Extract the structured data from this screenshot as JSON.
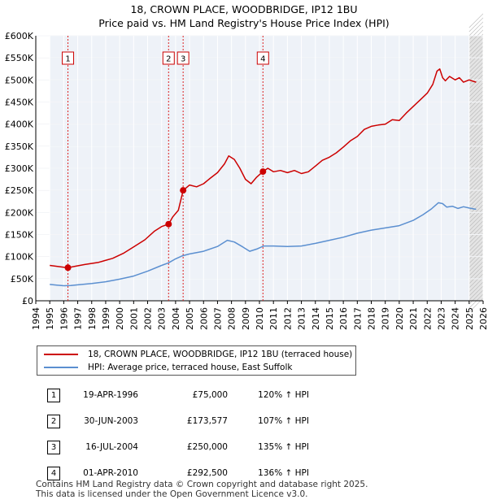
{
  "chart_data": {
    "type": "line",
    "title": "18, CROWN PLACE, WOODBRIDGE, IP12 1BU",
    "subtitle": "Price paid vs. HM Land Registry's House Price Index (HPI)",
    "xlim": [
      1994,
      2026
    ],
    "ylim": [
      0,
      600000
    ],
    "x_ticks": [
      "1994",
      "1995",
      "1996",
      "1997",
      "1998",
      "1999",
      "2000",
      "2001",
      "2002",
      "2003",
      "2004",
      "2005",
      "2006",
      "2007",
      "2008",
      "2009",
      "2010",
      "2011",
      "2012",
      "2013",
      "2014",
      "2015",
      "2016",
      "2017",
      "2018",
      "2019",
      "2020",
      "2021",
      "2022",
      "2023",
      "2024",
      "2025",
      "2026"
    ],
    "y_ticks": [
      {
        "value": 0,
        "label": "£0"
      },
      {
        "value": 50000,
        "label": "£50K"
      },
      {
        "value": 100000,
        "label": "£100K"
      },
      {
        "value": 150000,
        "label": "£150K"
      },
      {
        "value": 200000,
        "label": "£200K"
      },
      {
        "value": 250000,
        "label": "£250K"
      },
      {
        "value": 300000,
        "label": "£300K"
      },
      {
        "value": 350000,
        "label": "£350K"
      },
      {
        "value": 400000,
        "label": "£400K"
      },
      {
        "value": 450000,
        "label": "£450K"
      },
      {
        "value": 500000,
        "label": "£500K"
      },
      {
        "value": 550000,
        "label": "£550K"
      },
      {
        "value": 600000,
        "label": "£600K"
      }
    ],
    "grid": true,
    "data_start": 1995,
    "forecast_start": 2025.0,
    "series": [
      {
        "name": "18, CROWN PLACE, WOODBRIDGE, IP12 1BU (terraced house)",
        "color": "#cc0000",
        "points": [
          [
            1995.0,
            80000
          ],
          [
            1995.5,
            78000
          ],
          [
            1996.0,
            76000
          ],
          [
            1996.3,
            75000
          ],
          [
            1996.8,
            78000
          ],
          [
            1997.5,
            82000
          ],
          [
            1998.5,
            87000
          ],
          [
            1999.5,
            96000
          ],
          [
            2000.3,
            108000
          ],
          [
            2001.0,
            122000
          ],
          [
            2001.8,
            138000
          ],
          [
            2002.5,
            158000
          ],
          [
            2003.0,
            168000
          ],
          [
            2003.5,
            173577
          ],
          [
            2003.8,
            190000
          ],
          [
            2004.2,
            205000
          ],
          [
            2004.54,
            250000
          ],
          [
            2005.0,
            262000
          ],
          [
            2005.5,
            258000
          ],
          [
            2006.0,
            265000
          ],
          [
            2006.5,
            278000
          ],
          [
            2007.0,
            290000
          ],
          [
            2007.5,
            310000
          ],
          [
            2007.8,
            328000
          ],
          [
            2008.2,
            320000
          ],
          [
            2008.6,
            300000
          ],
          [
            2009.0,
            275000
          ],
          [
            2009.4,
            265000
          ],
          [
            2009.8,
            280000
          ],
          [
            2010.25,
            292500
          ],
          [
            2010.6,
            300000
          ],
          [
            2011.0,
            292000
          ],
          [
            2011.5,
            295000
          ],
          [
            2012.0,
            290000
          ],
          [
            2012.5,
            295000
          ],
          [
            2013.0,
            288000
          ],
          [
            2013.5,
            292000
          ],
          [
            2014.0,
            305000
          ],
          [
            2014.5,
            318000
          ],
          [
            2015.0,
            325000
          ],
          [
            2015.5,
            335000
          ],
          [
            2016.0,
            348000
          ],
          [
            2016.5,
            362000
          ],
          [
            2017.0,
            372000
          ],
          [
            2017.5,
            388000
          ],
          [
            2018.0,
            395000
          ],
          [
            2018.5,
            398000
          ],
          [
            2019.0,
            400000
          ],
          [
            2019.5,
            410000
          ],
          [
            2020.0,
            408000
          ],
          [
            2020.5,
            425000
          ],
          [
            2021.0,
            440000
          ],
          [
            2021.5,
            455000
          ],
          [
            2022.0,
            470000
          ],
          [
            2022.4,
            490000
          ],
          [
            2022.7,
            520000
          ],
          [
            2022.9,
            525000
          ],
          [
            2023.1,
            505000
          ],
          [
            2023.3,
            498000
          ],
          [
            2023.6,
            508000
          ],
          [
            2024.0,
            500000
          ],
          [
            2024.3,
            505000
          ],
          [
            2024.6,
            495000
          ],
          [
            2025.0,
            500000
          ],
          [
            2025.5,
            495000
          ]
        ]
      },
      {
        "name": "HPI: Average price, terraced house, East Suffolk",
        "color": "#5b8fd0",
        "points": [
          [
            1995.0,
            37000
          ],
          [
            1995.5,
            35500
          ],
          [
            1996.0,
            34000
          ],
          [
            1996.5,
            34500
          ],
          [
            1997.0,
            36000
          ],
          [
            1998.0,
            39000
          ],
          [
            1999.0,
            43000
          ],
          [
            2000.0,
            49000
          ],
          [
            2001.0,
            56000
          ],
          [
            2002.0,
            67000
          ],
          [
            2003.0,
            80000
          ],
          [
            2003.5,
            86000
          ],
          [
            2004.0,
            95000
          ],
          [
            2004.5,
            102000
          ],
          [
            2005.0,
            106000
          ],
          [
            2006.0,
            112000
          ],
          [
            2007.0,
            123000
          ],
          [
            2007.7,
            137000
          ],
          [
            2008.2,
            133000
          ],
          [
            2008.8,
            122000
          ],
          [
            2009.3,
            112000
          ],
          [
            2009.8,
            117000
          ],
          [
            2010.3,
            124000
          ],
          [
            2011.0,
            124000
          ],
          [
            2012.0,
            123000
          ],
          [
            2013.0,
            124000
          ],
          [
            2014.0,
            130000
          ],
          [
            2015.0,
            137000
          ],
          [
            2016.0,
            144000
          ],
          [
            2017.0,
            153000
          ],
          [
            2018.0,
            160000
          ],
          [
            2019.0,
            165000
          ],
          [
            2020.0,
            170000
          ],
          [
            2021.0,
            182000
          ],
          [
            2021.7,
            195000
          ],
          [
            2022.3,
            208000
          ],
          [
            2022.8,
            222000
          ],
          [
            2023.1,
            220000
          ],
          [
            2023.4,
            212000
          ],
          [
            2023.8,
            214000
          ],
          [
            2024.2,
            209000
          ],
          [
            2024.6,
            213000
          ],
          [
            2025.0,
            210000
          ],
          [
            2025.5,
            207000
          ]
        ]
      }
    ],
    "sales": [
      {
        "n": "1",
        "x": 1996.3,
        "price": 75000
      },
      {
        "n": "2",
        "x": 2003.5,
        "price": 173577
      },
      {
        "n": "3",
        "x": 2004.54,
        "price": 250000
      },
      {
        "n": "4",
        "x": 2010.25,
        "price": 292500
      }
    ]
  },
  "legend": {
    "red": "18, CROWN PLACE, WOODBRIDGE, IP12 1BU (terraced house)",
    "blue": "HPI: Average price, terraced house, East Suffolk"
  },
  "table": [
    {
      "n": "1",
      "date": "19-APR-1996",
      "price": "£75,000",
      "hpi": "120% ↑ HPI"
    },
    {
      "n": "2",
      "date": "30-JUN-2003",
      "price": "£173,577",
      "hpi": "107% ↑ HPI"
    },
    {
      "n": "3",
      "date": "16-JUL-2004",
      "price": "£250,000",
      "hpi": "135% ↑ HPI"
    },
    {
      "n": "4",
      "date": "01-APR-2010",
      "price": "£292,500",
      "hpi": "136% ↑ HPI"
    }
  ],
  "footer": {
    "line1": "Contains HM Land Registry data © Crown copyright and database right 2025.",
    "line2": "This data is licensed under the Open Government Licence v3.0."
  }
}
